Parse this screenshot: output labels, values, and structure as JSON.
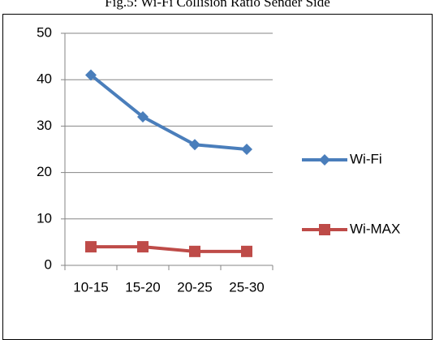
{
  "chart_data": {
    "type": "line",
    "title": "Fig.5: Wi-Fi Collision Ratio Sender Side",
    "categories": [
      "10-15",
      "15-20",
      "20-25",
      "25-30"
    ],
    "series": [
      {
        "name": "Wi-Fi",
        "color": "#4a7ebb",
        "marker": "diamond",
        "values": [
          41,
          32,
          26,
          25
        ]
      },
      {
        "name": "Wi-MAX",
        "color": "#be4b48",
        "marker": "square",
        "values": [
          4,
          4,
          3,
          3
        ]
      }
    ],
    "ylim": [
      0,
      50
    ],
    "yticks": [
      0,
      10,
      20,
      30,
      40,
      50
    ],
    "grid": true,
    "legend": "right"
  }
}
